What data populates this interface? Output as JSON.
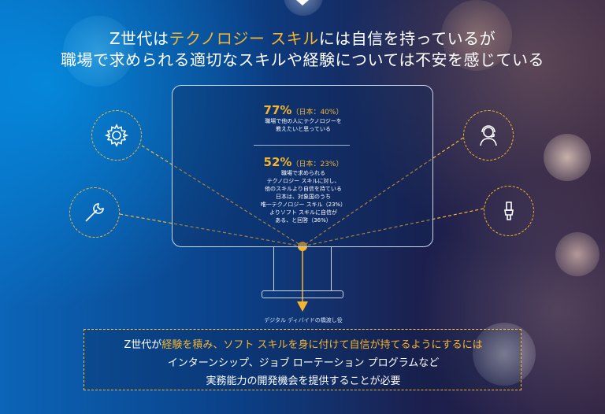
{
  "headline": {
    "line1": {
      "pre": "Z世代は",
      "accent": "テクノロジー スキル",
      "post": "には自信を持っているが"
    },
    "line2": "職場で求められる適切なスキルや経験については不安を感じている"
  },
  "stats": [
    {
      "pct": "77%",
      "jp": "（日本：40%）",
      "desc": [
        "職場で他の人にテクノロジーを",
        "教えたいと思っている"
      ]
    },
    {
      "pct": "52%",
      "jp": "（日本：23%）",
      "desc": [
        "職場で求められる",
        "テクノロジー スキルに対し、",
        "他のスキルより自信を持ている",
        "日本は、対象国のうち",
        "唯一テクノロジー スキル（23%）",
        "よりソフト スキルに自信が",
        "ある、と回答（36%）"
      ]
    }
  ],
  "icons": [
    "gear-icon",
    "person-headset-icon",
    "wrench-icon",
    "brush-icon"
  ],
  "caption": "デジタル ディバイドの橋渡し役",
  "bottom": {
    "line1": {
      "pre": "Z世代が",
      "accent": "経験を積み、ソフト スキルを身に付けて自信が持てるようにするには"
    },
    "line2": "インターンシップ、ジョブ ローテーション プログラムなど",
    "line3": "実務能力の開発機会を提供することが必要"
  },
  "colors": {
    "accent": "#f5b52e",
    "line": "#c7d7e8"
  }
}
